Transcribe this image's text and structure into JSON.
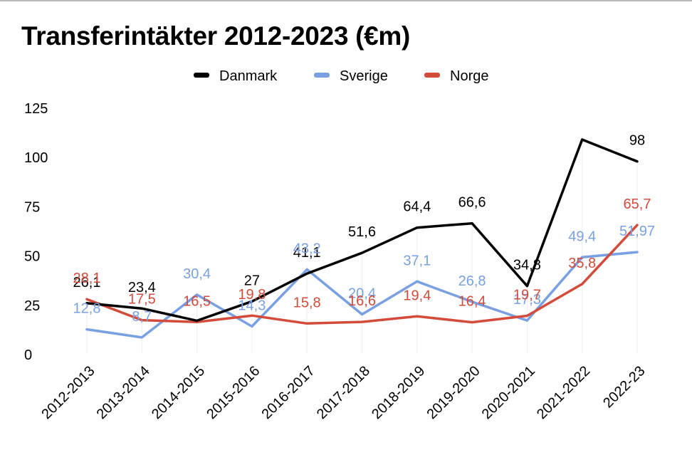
{
  "chart_data": {
    "type": "line",
    "title": "Transferintäkter 2012-2023 (€m)",
    "xlabel": "",
    "ylabel": "",
    "ylim": [
      0,
      125
    ],
    "yticks": [
      0,
      25,
      50,
      75,
      100,
      125
    ],
    "categories": [
      "2012-2013",
      "2013-2014",
      "2014-2015",
      "2015-2016",
      "2016-2017",
      "2017-2018",
      "2018-2019",
      "2019-2020",
      "2020-2021",
      "2021-2022",
      "2022-23"
    ],
    "legend_position": "top-center",
    "series": [
      {
        "name": "Danmark",
        "color": "#000000",
        "values": [
          26.1,
          23.4,
          17.2,
          27,
          41.1,
          51.6,
          64.4,
          66.6,
          34.8,
          109.1,
          98
        ],
        "labels": [
          "26,1",
          "23,4",
          "",
          "27",
          "41,1",
          "51,6",
          "64,4",
          "66,6",
          "34,8",
          "",
          "98"
        ]
      },
      {
        "name": "Sverige",
        "color": "#7aa0e4",
        "values": [
          12.8,
          8.7,
          30.4,
          14.3,
          43.2,
          20.4,
          37.1,
          26.8,
          17.3,
          49.4,
          51.97
        ],
        "labels": [
          "12,8",
          "8,7",
          "30,4",
          "14,3",
          "43,2",
          "20,4",
          "37,1",
          "26,8",
          "17,3",
          "49,4",
          "51,97"
        ]
      },
      {
        "name": "Norge",
        "color": "#d34b3b",
        "values": [
          28.1,
          17.5,
          16.5,
          19.8,
          15.8,
          16.6,
          19.4,
          16.4,
          19.7,
          35.8,
          65.7
        ],
        "labels": [
          "28,1",
          "17,5",
          "16,5",
          "19,8",
          "15,8",
          "16,6",
          "19,4",
          "16,4",
          "19,7",
          "35,8",
          "65,7"
        ]
      }
    ]
  }
}
